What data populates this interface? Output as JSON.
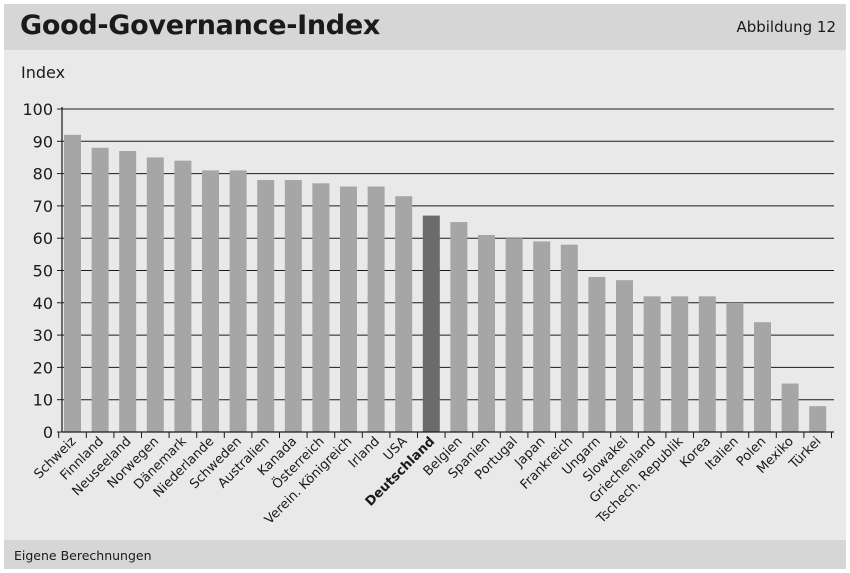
{
  "header": {
    "title": "Good-Governance-Index",
    "figure_label": "Abbildung 12"
  },
  "footer": {
    "source": "Eigene Berechnungen"
  },
  "colors": {
    "bar": "#a6a6a6",
    "bar_highlight": "#6b6b6b",
    "background": "#e9e9e9",
    "header": "#d6d6d6",
    "grid": "#1a1a1a"
  },
  "chart_data": {
    "type": "bar",
    "title": "Good-Governance-Index",
    "ylabel": "Index",
    "xlabel": "",
    "ylim": [
      0,
      100
    ],
    "yticks": [
      0,
      10,
      20,
      30,
      40,
      50,
      60,
      70,
      80,
      90,
      100
    ],
    "grid": true,
    "highlight": "Deutschland",
    "categories": [
      "Schweiz",
      "Finnland",
      "Neuseeland",
      "Norwegen",
      "Dänemark",
      "Niederlande",
      "Schweden",
      "Australien",
      "Kanada",
      "Österreich",
      "Verein. Königreich",
      "Irland",
      "USA",
      "Deutschland",
      "Belgien",
      "Spanien",
      "Portugal",
      "Japan",
      "Frankreich",
      "Ungarn",
      "Slowakei",
      "Griechenland",
      "Tschech. Republik",
      "Korea",
      "Italien",
      "Polen",
      "Mexiko",
      "Türkei"
    ],
    "values": [
      92,
      88,
      87,
      85,
      84,
      81,
      81,
      78,
      78,
      77,
      76,
      76,
      73,
      67,
      65,
      61,
      60,
      59,
      58,
      48,
      47,
      42,
      42,
      42,
      40,
      34,
      15,
      8
    ]
  }
}
